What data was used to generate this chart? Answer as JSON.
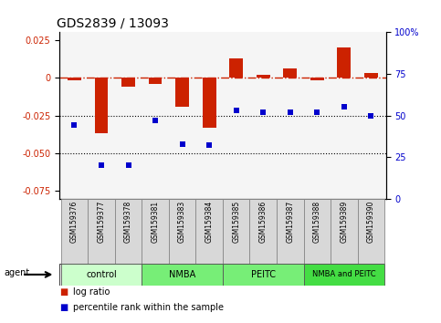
{
  "title": "GDS2839 / 13093",
  "samples": [
    "GSM159376",
    "GSM159377",
    "GSM159378",
    "GSM159381",
    "GSM159383",
    "GSM159384",
    "GSM159385",
    "GSM159386",
    "GSM159387",
    "GSM159388",
    "GSM159389",
    "GSM159390"
  ],
  "log_ratio": [
    -0.002,
    -0.037,
    -0.006,
    -0.004,
    -0.019,
    -0.033,
    0.013,
    0.002,
    0.006,
    -0.002,
    0.02,
    0.003
  ],
  "percentile_rank": [
    44,
    20,
    20,
    47,
    33,
    32,
    53,
    52,
    52,
    52,
    55,
    50
  ],
  "groups": [
    {
      "label": "control",
      "start": 0,
      "end": 3,
      "color": "#ccffcc"
    },
    {
      "label": "NMBA",
      "start": 3,
      "end": 6,
      "color": "#77ee77"
    },
    {
      "label": "PEITC",
      "start": 6,
      "end": 9,
      "color": "#77ee77"
    },
    {
      "label": "NMBA and PEITC",
      "start": 9,
      "end": 12,
      "color": "#44dd44"
    }
  ],
  "ylim_left": [
    -0.08,
    0.03
  ],
  "ylim_right": [
    0,
    100
  ],
  "yticks_left": [
    -0.075,
    -0.05,
    -0.025,
    0.0,
    0.025
  ],
  "yticks_right": [
    0,
    25,
    50,
    75,
    100
  ],
  "bar_color": "#cc2200",
  "dot_color": "#0000cc",
  "hline_color": "#cc2200",
  "sample_box_color": "#d8d8d8",
  "bg_color": "#ffffff"
}
